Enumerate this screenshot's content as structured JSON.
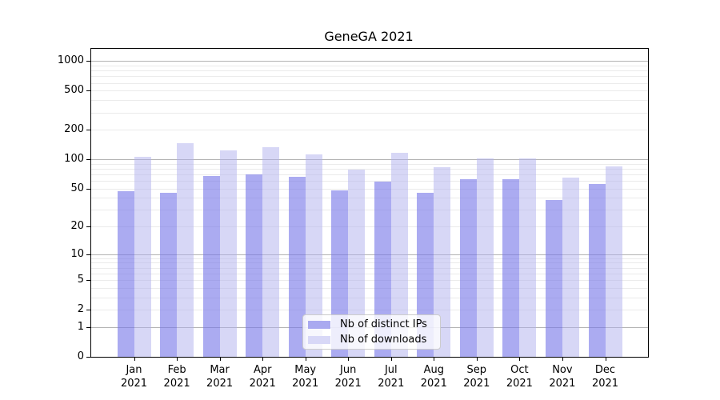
{
  "title": "GeneGA 2021",
  "y_axis": {
    "tick_labels": [
      "1000",
      "500",
      "200",
      "100",
      "50",
      "20",
      "10",
      "5",
      "2",
      "1",
      "0"
    ],
    "tick_values": [
      1000,
      500,
      200,
      100,
      50,
      20,
      10,
      5,
      2,
      1,
      0
    ],
    "major_gridlines": [
      1,
      10,
      100,
      1000
    ],
    "minor_gridlines": [
      2,
      3,
      4,
      5,
      6,
      7,
      8,
      9,
      20,
      30,
      40,
      50,
      60,
      70,
      80,
      90,
      200,
      300,
      400,
      500,
      600,
      700,
      800,
      900
    ]
  },
  "legend": {
    "items": [
      {
        "label": "Nb of distinct IPs",
        "swatch_color": "#a9a9f0"
      },
      {
        "label": "Nb of downloads",
        "swatch_color": "#d8d8f7"
      }
    ]
  },
  "colors": {
    "ips_bar": "rgba(120,120,232,0.62)",
    "downloads_bar": "rgba(176,176,238,0.5)",
    "grid_major": "#b3b3b3",
    "grid_minor": "#ebebeb",
    "axis": "#000000"
  },
  "chart_data": {
    "type": "bar",
    "title": "GeneGA 2021",
    "categories": [
      "Jan",
      "Feb",
      "Mar",
      "Apr",
      "May",
      "Jun",
      "Jul",
      "Aug",
      "Sep",
      "Oct",
      "Nov",
      "Dec"
    ],
    "year": "2021",
    "series": [
      {
        "name": "Nb of distinct IPs",
        "values": [
          47,
          45,
          67,
          70,
          66,
          48,
          59,
          45,
          62,
          62,
          38,
          56
        ]
      },
      {
        "name": "Nb of downloads",
        "values": [
          107,
          146,
          123,
          132,
          113,
          79,
          116,
          83,
          102,
          103,
          65,
          84
        ]
      }
    ],
    "xlabel": "",
    "ylabel": "",
    "yscale": "log1p",
    "y_ticks": [
      0,
      1,
      2,
      5,
      10,
      20,
      50,
      100,
      200,
      500,
      1000
    ],
    "ylim": [
      0,
      1330
    ],
    "grid": true,
    "legend_position": "lower center inside plot"
  }
}
